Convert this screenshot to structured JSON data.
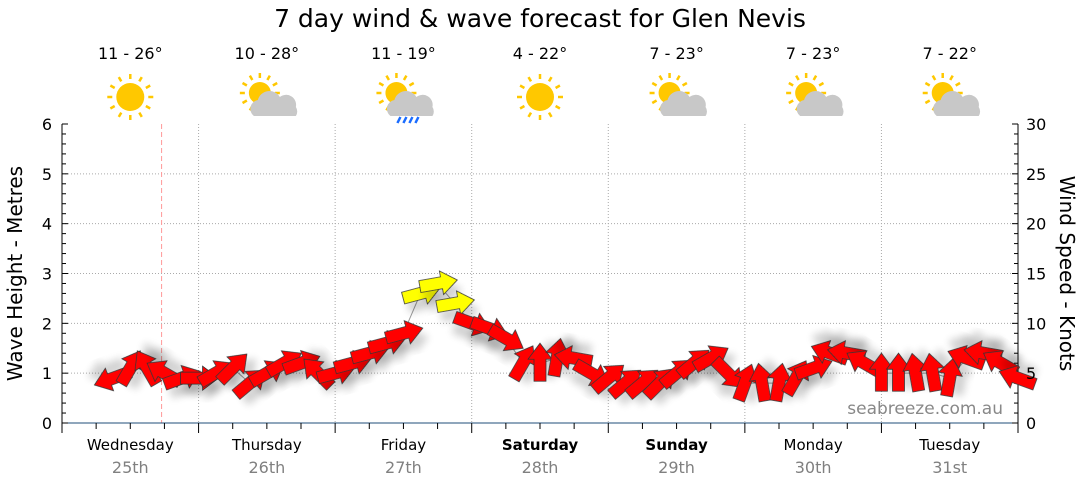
{
  "chart_data": {
    "type": "scatter",
    "title": "7 day wind & wave forecast for Glen Nevis",
    "ylabel_left": "Wave Height - Metres",
    "ylabel_right": "Wind Speed - Knots",
    "ylim_left": [
      0,
      6
    ],
    "ylim_right": [
      0,
      30
    ],
    "left_ticks": [
      "0",
      "1",
      "2",
      "3",
      "4",
      "5",
      "6"
    ],
    "right_ticks": [
      "0",
      "5",
      "10",
      "15",
      "20",
      "25",
      "30"
    ],
    "grid": true,
    "watermark": "seabreeze.com.au",
    "days": [
      {
        "name": "Wednesday",
        "date": "25th",
        "temp": "11 - 26°",
        "icon": "sun-icon",
        "bold": false
      },
      {
        "name": "Thursday",
        "date": "26th",
        "temp": "10 - 28°",
        "icon": "partly-cloudy-icon",
        "bold": false
      },
      {
        "name": "Friday",
        "date": "27th",
        "temp": "11 - 19°",
        "icon": "rain-icon",
        "bold": false
      },
      {
        "name": "Saturday",
        "date": "28th",
        "temp": "4 - 22°",
        "icon": "sun-icon",
        "bold": true
      },
      {
        "name": "Sunday",
        "date": "29th",
        "temp": "7 - 23°",
        "icon": "partly-cloudy-icon",
        "bold": true
      },
      {
        "name": "Monday",
        "date": "30th",
        "temp": "7 - 23°",
        "icon": "partly-cloudy-icon",
        "bold": false
      },
      {
        "name": "Tuesday",
        "date": "31st",
        "temp": "7 - 22°",
        "icon": "partly-cloudy-icon",
        "bold": false
      }
    ],
    "current_time_hours": 17.5,
    "colors": {
      "normal": "#ff0000",
      "strong": "#ffff00",
      "now_line": "#ff9999"
    },
    "wind_series": {
      "step_hours": 3,
      "start_hours": 9,
      "speed_knots": [
        4.5,
        5.5,
        5.5,
        5,
        4.5,
        4.5,
        5,
        5.5,
        4,
        5,
        6,
        6,
        5,
        5,
        6,
        7,
        8,
        9,
        13,
        14,
        12,
        10,
        9.5,
        8.5,
        6,
        6,
        6.5,
        6.5,
        5,
        4.5,
        4,
        4,
        4,
        5,
        6,
        6.5,
        5,
        4,
        4,
        4,
        4.5,
        5.5,
        7,
        7,
        6,
        5,
        5,
        5,
        5,
        4.5,
        6.5,
        7,
        6,
        4.5
      ],
      "arrow_direction_deg": [
        200,
        60,
        120,
        150,
        20,
        0,
        30,
        45,
        40,
        30,
        30,
        20,
        135,
        15,
        15,
        15,
        15,
        15,
        15,
        10,
        10,
        -20,
        -20,
        -30,
        60,
        90,
        80,
        170,
        -30,
        40,
        40,
        40,
        45,
        40,
        40,
        30,
        -45,
        70,
        100,
        80,
        60,
        20,
        160,
        170,
        150,
        90,
        90,
        100,
        100,
        80,
        160,
        170,
        150,
        160
      ]
    }
  }
}
